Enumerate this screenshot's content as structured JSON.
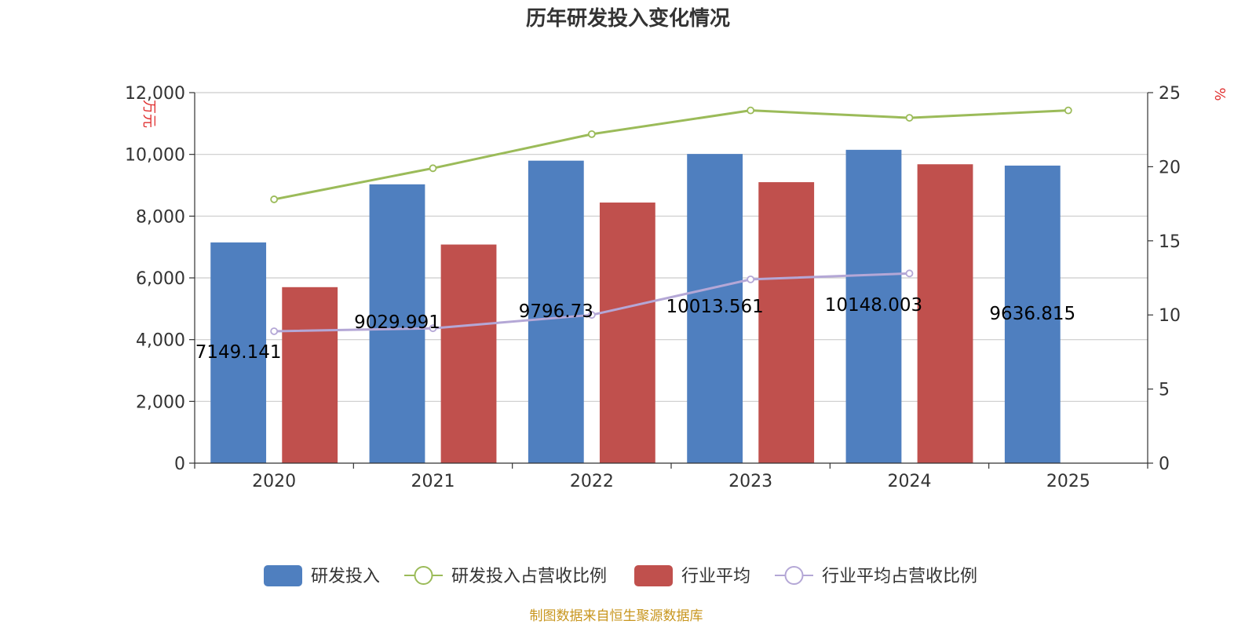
{
  "title": "历年研发投入变化情况",
  "source": "制图数据来自恒生聚源数据库",
  "colors": {
    "rd": "#4f7fbf",
    "rd_ratio": "#9bbb59",
    "industry": "#c0504d",
    "industry_ratio": "#b4a7d6"
  },
  "chart_data": {
    "type": "bar",
    "categories": [
      "2020",
      "2021",
      "2022",
      "2023",
      "2024",
      "2025"
    ],
    "y_left": {
      "unit": "万元",
      "ylim": [
        0,
        12000
      ],
      "ticks": [
        "0",
        "2,000",
        "4,000",
        "6,000",
        "8,000",
        "10,000",
        "12,000"
      ]
    },
    "y_right": {
      "unit": "%",
      "ylim": [
        0,
        25
      ],
      "ticks": [
        "0",
        "5",
        "10",
        "15",
        "20",
        "25"
      ]
    },
    "series": [
      {
        "name": "研发投入",
        "type": "bar",
        "axis": "left",
        "values": [
          7149.141,
          9029.991,
          9796.73,
          10013.561,
          10148.003,
          9636.815
        ],
        "labels": [
          "7149.141",
          "9029.991",
          "9796.73",
          "10013.561",
          "10148.003",
          "9636.815"
        ]
      },
      {
        "name": "研发投入占营收比例",
        "type": "line",
        "axis": "right",
        "values": [
          17.8,
          19.9,
          22.2,
          23.8,
          23.3,
          23.8
        ]
      },
      {
        "name": "行业平均",
        "type": "bar",
        "axis": "left",
        "values": [
          5700,
          7080,
          8440,
          9100,
          9680,
          null
        ]
      },
      {
        "name": "行业平均占营收比例",
        "type": "line",
        "axis": "right",
        "values": [
          8.9,
          9.1,
          10.0,
          12.4,
          12.8,
          null
        ]
      }
    ],
    "grid": true,
    "legend": "bottom"
  }
}
